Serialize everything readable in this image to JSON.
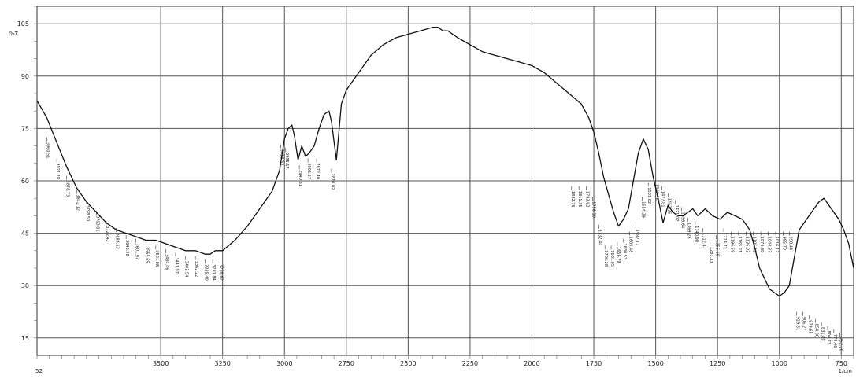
{
  "chart_data": {
    "type": "line",
    "title": "",
    "ylabel": "%T",
    "xlabel": "1/cm",
    "x_reversed": true,
    "xlim": [
      4000,
      700
    ],
    "ylim": [
      10,
      110
    ],
    "grid": true,
    "x_ticks": [
      {
        "v": 3500,
        "label": "3500"
      },
      {
        "v": 3250,
        "label": "3250"
      },
      {
        "v": 3000,
        "label": "3000"
      },
      {
        "v": 2750,
        "label": "2750"
      },
      {
        "v": 2500,
        "label": "2500"
      },
      {
        "v": 2250,
        "label": "2250"
      },
      {
        "v": 2000,
        "label": "2000"
      },
      {
        "v": 1750,
        "label": "1750"
      },
      {
        "v": 1500,
        "label": "1500"
      },
      {
        "v": 1250,
        "label": "1250"
      },
      {
        "v": 1000,
        "label": "1000"
      },
      {
        "v": 750,
        "label": "750"
      }
    ],
    "x_left_label": "52",
    "y_ticks": [
      {
        "v": 105,
        "label": "105"
      },
      {
        "v": 90,
        "label": "90"
      },
      {
        "v": 75,
        "label": "75"
      },
      {
        "v": 60,
        "label": "60"
      },
      {
        "v": 45,
        "label": "45"
      },
      {
        "v": 30,
        "label": "30"
      },
      {
        "v": 15,
        "label": "15"
      }
    ],
    "series": [
      {
        "name": "",
        "x": [
          4000,
          3960,
          3920,
          3880,
          3840,
          3800,
          3760,
          3720,
          3680,
          3640,
          3600,
          3560,
          3520,
          3480,
          3440,
          3400,
          3360,
          3320,
          3300,
          3280,
          3250,
          3200,
          3150,
          3100,
          3050,
          3020,
          3000,
          2985,
          2970,
          2960,
          2945,
          2930,
          2915,
          2900,
          2880,
          2860,
          2840,
          2820,
          2810,
          2790,
          2770,
          2750,
          2700,
          2650,
          2600,
          2550,
          2500,
          2450,
          2400,
          2380,
          2360,
          2340,
          2300,
          2250,
          2200,
          2150,
          2100,
          2050,
          2000,
          1950,
          1900,
          1850,
          1800,
          1770,
          1750,
          1730,
          1710,
          1690,
          1670,
          1650,
          1630,
          1610,
          1590,
          1570,
          1550,
          1530,
          1510,
          1490,
          1470,
          1450,
          1430,
          1410,
          1390,
          1370,
          1350,
          1330,
          1300,
          1270,
          1240,
          1210,
          1180,
          1150,
          1120,
          1100,
          1080,
          1060,
          1040,
          1020,
          1000,
          980,
          960,
          940,
          920,
          900,
          880,
          860,
          840,
          820,
          800,
          780,
          760,
          740,
          720,
          700
        ],
        "y": [
          83,
          78,
          71,
          64,
          58,
          54,
          51,
          48,
          46,
          45,
          44,
          43,
          43,
          42,
          41,
          40,
          40,
          39,
          39,
          40,
          40,
          43,
          47,
          52,
          57,
          63,
          72,
          75,
          76,
          73,
          66,
          70,
          67,
          68,
          70,
          75,
          79,
          80,
          77,
          66,
          82,
          86,
          91,
          96,
          99,
          101,
          102,
          103,
          104,
          104,
          103,
          103,
          101,
          99,
          97,
          96,
          95,
          94,
          93,
          91,
          88,
          85,
          82,
          78,
          74,
          68,
          61,
          56,
          51,
          47,
          49,
          52,
          60,
          68,
          72,
          69,
          61,
          55,
          48,
          53,
          51,
          50,
          50,
          51,
          52,
          50,
          52,
          50,
          49,
          51,
          50,
          49,
          46,
          41,
          35,
          32,
          29,
          28,
          27,
          28,
          30,
          38,
          46,
          48,
          50,
          52,
          54,
          55,
          53,
          51,
          49,
          46,
          42,
          35
        ]
      }
    ],
    "peak_labels": [
      {
        "x": 3960,
        "y": 72,
        "label": "3960.51"
      },
      {
        "x": 3920,
        "y": 66,
        "label": "3921.18"
      },
      {
        "x": 3880,
        "y": 61,
        "label": "3878.73"
      },
      {
        "x": 3840,
        "y": 57,
        "label": "3842.12"
      },
      {
        "x": 3800,
        "y": 54,
        "label": "3798.50"
      },
      {
        "x": 3760,
        "y": 51,
        "label": "3763.81"
      },
      {
        "x": 3720,
        "y": 48,
        "label": "3722.42"
      },
      {
        "x": 3680,
        "y": 46,
        "label": "3684.13"
      },
      {
        "x": 3640,
        "y": 44,
        "label": "3643.28"
      },
      {
        "x": 3600,
        "y": 43,
        "label": "3601.97"
      },
      {
        "x": 3560,
        "y": 42,
        "label": "3565.65"
      },
      {
        "x": 3520,
        "y": 41,
        "label": "3521.08"
      },
      {
        "x": 3480,
        "y": 40,
        "label": "3484.46"
      },
      {
        "x": 3440,
        "y": 39,
        "label": "3441.97"
      },
      {
        "x": 3400,
        "y": 38,
        "label": "3402.54"
      },
      {
        "x": 3360,
        "y": 38,
        "label": "3362.22"
      },
      {
        "x": 3320,
        "y": 37,
        "label": "3325.40"
      },
      {
        "x": 3290,
        "y": 37,
        "label": "3291.84"
      },
      {
        "x": 3260,
        "y": 37,
        "label": "3258.62"
      },
      {
        "x": 3015,
        "y": 70,
        "label": "3016.33"
      },
      {
        "x": 2995,
        "y": 69,
        "label": "2995.17"
      },
      {
        "x": 2940,
        "y": 64,
        "label": "2940.81"
      },
      {
        "x": 2905,
        "y": 66,
        "label": "2906.57"
      },
      {
        "x": 2870,
        "y": 66,
        "label": "2872.40"
      },
      {
        "x": 2810,
        "y": 63,
        "label": "2810.02"
      },
      {
        "x": 1840,
        "y": 58,
        "label": "1842.76"
      },
      {
        "x": 1810,
        "y": 58,
        "label": "1811.35"
      },
      {
        "x": 1780,
        "y": 58,
        "label": "1783.62"
      },
      {
        "x": 1755,
        "y": 55,
        "label": "1756.10"
      },
      {
        "x": 1730,
        "y": 47,
        "label": "1732.44"
      },
      {
        "x": 1705,
        "y": 41,
        "label": "1706.28"
      },
      {
        "x": 1680,
        "y": 41,
        "label": "1681.05"
      },
      {
        "x": 1655,
        "y": 42,
        "label": "1656.79"
      },
      {
        "x": 1630,
        "y": 43,
        "label": "1630.53"
      },
      {
        "x": 1605,
        "y": 45,
        "label": "1605.48"
      },
      {
        "x": 1580,
        "y": 47,
        "label": "1582.17"
      },
      {
        "x": 1555,
        "y": 55,
        "label": "1554.29"
      },
      {
        "x": 1530,
        "y": 59,
        "label": "1531.62"
      },
      {
        "x": 1500,
        "y": 60,
        "label": "1502.96"
      },
      {
        "x": 1475,
        "y": 58,
        "label": "1477.81"
      },
      {
        "x": 1450,
        "y": 56,
        "label": "1452.35"
      },
      {
        "x": 1420,
        "y": 54,
        "label": "1421.07"
      },
      {
        "x": 1395,
        "y": 52,
        "label": "1396.64"
      },
      {
        "x": 1370,
        "y": 49,
        "label": "1369.28"
      },
      {
        "x": 1340,
        "y": 48,
        "label": "1340.90"
      },
      {
        "x": 1310,
        "y": 46,
        "label": "1312.47"
      },
      {
        "x": 1280,
        "y": 42,
        "label": "1281.33"
      },
      {
        "x": 1255,
        "y": 44,
        "label": "1256.16"
      },
      {
        "x": 1225,
        "y": 46,
        "label": "1224.72"
      },
      {
        "x": 1195,
        "y": 45,
        "label": "1196.58"
      },
      {
        "x": 1165,
        "y": 45,
        "label": "1165.21"
      },
      {
        "x": 1135,
        "y": 45,
        "label": "1136.03"
      },
      {
        "x": 1105,
        "y": 45,
        "label": "1105.42"
      },
      {
        "x": 1075,
        "y": 45,
        "label": "1074.89"
      },
      {
        "x": 1045,
        "y": 45,
        "label": "1044.37"
      },
      {
        "x": 1015,
        "y": 45,
        "label": "1016.12"
      },
      {
        "x": 985,
        "y": 45,
        "label": "985.70"
      },
      {
        "x": 960,
        "y": 45,
        "label": "958.44"
      },
      {
        "x": 930,
        "y": 22,
        "label": "929.51"
      },
      {
        "x": 905,
        "y": 22,
        "label": "906.27"
      },
      {
        "x": 880,
        "y": 21,
        "label": "879.65"
      },
      {
        "x": 855,
        "y": 20,
        "label": "854.38"
      },
      {
        "x": 830,
        "y": 19,
        "label": "831.09"
      },
      {
        "x": 805,
        "y": 18,
        "label": "804.73"
      },
      {
        "x": 780,
        "y": 17,
        "label": "779.46"
      },
      {
        "x": 755,
        "y": 16,
        "label": "752.20"
      }
    ]
  }
}
